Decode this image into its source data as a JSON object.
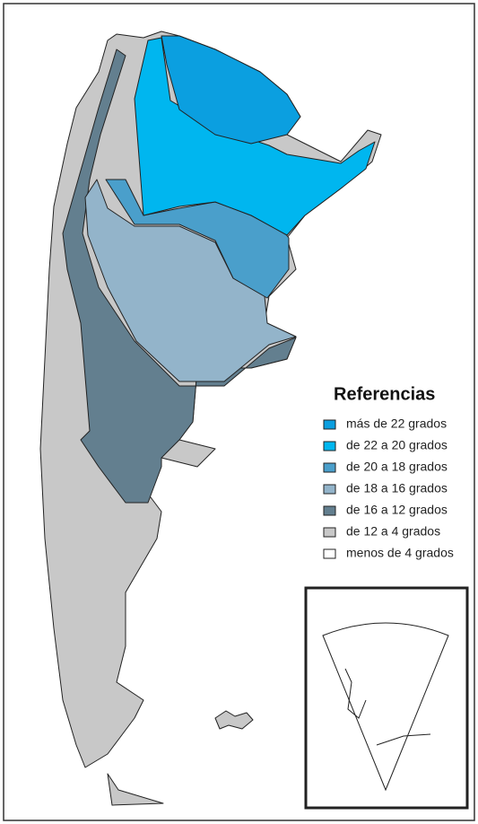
{
  "legend": {
    "title": "Referencias",
    "items": [
      {
        "label": "más de 22 grados",
        "color": "#0b9fe0"
      },
      {
        "label": "de 22 a 20 grados",
        "color": "#00b6ef"
      },
      {
        "label": "de 20 a 18 grados",
        "color": "#4a9fcb"
      },
      {
        "label": "de 18 a 16 grados",
        "color": "#93b4ca"
      },
      {
        "label": "de 16 a 12 grados",
        "color": "#637f8f"
      },
      {
        "label": "de 12 a 4 grados",
        "color": "#c8c8c8"
      },
      {
        "label": "menos de 4 grados",
        "color": "#ffffff"
      }
    ]
  }
}
